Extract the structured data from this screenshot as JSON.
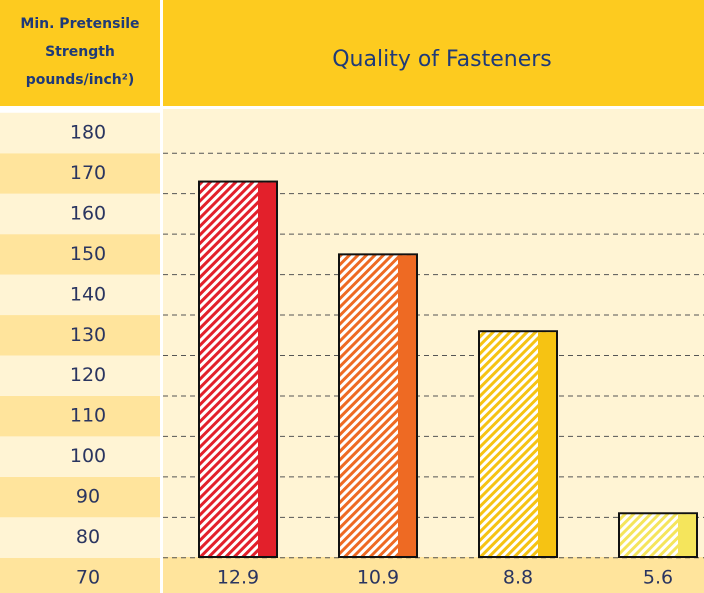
{
  "chart_data": {
    "type": "bar",
    "title": "Quality of Fasteners",
    "y_label": [
      "Min. Pretensile",
      "Strength",
      "pounds/inch²)"
    ],
    "categories": [
      "12.9",
      "10.9",
      "8.8",
      "5.6"
    ],
    "values": [
      168,
      150,
      131,
      86
    ],
    "colors": [
      "#e3202b",
      "#ee6a23",
      "#f6c313",
      "#f5e55c"
    ],
    "ylim": [
      70,
      180
    ],
    "yticks": [
      70,
      80,
      90,
      100,
      110,
      120,
      130,
      140,
      150,
      160,
      170,
      180
    ],
    "grid": true
  }
}
